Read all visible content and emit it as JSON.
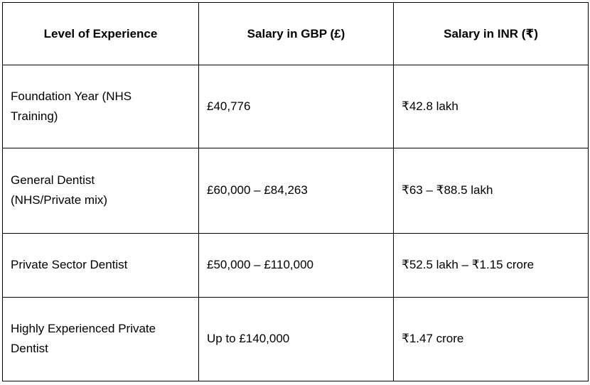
{
  "table": {
    "headers": [
      "Level of Experience",
      "Salary in GBP (£)",
      "Salary in INR (₹)"
    ],
    "rows": [
      [
        "Foundation Year (NHS\nTraining)",
        "£40,776",
        "₹42.8 lakh"
      ],
      [
        "General Dentist\n(NHS/Private mix)",
        "£60,000 – £84,263",
        "₹63 – ₹88.5 lakh"
      ],
      [
        "Private Sector Dentist",
        "£50,000 – £110,000",
        "₹52.5 lakh – ₹1.15 crore"
      ],
      [
        "Highly Experienced Private\nDentist",
        "Up to £140,000",
        "₹1.47 crore"
      ]
    ]
  },
  "colors": {
    "border": "#000000",
    "text": "#000000",
    "background": "#ffffff"
  }
}
